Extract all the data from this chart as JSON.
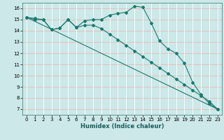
{
  "xlabel": "Humidex (Indice chaleur)",
  "bg_color": "#cce8e8",
  "line_color": "#1a7a6e",
  "grid_color_v": "#ffffff",
  "grid_color_h": "#e8b8b8",
  "xlim": [
    -0.5,
    23.5
  ],
  "ylim": [
    6.5,
    16.5
  ],
  "xticks": [
    0,
    1,
    2,
    3,
    4,
    5,
    6,
    7,
    8,
    9,
    10,
    11,
    12,
    13,
    14,
    15,
    16,
    17,
    18,
    19,
    20,
    21,
    22,
    23
  ],
  "yticks": [
    7,
    8,
    9,
    10,
    11,
    12,
    13,
    14,
    15,
    16
  ],
  "line1_x": [
    0,
    1,
    2,
    3,
    4,
    5,
    6,
    7,
    8,
    9,
    10,
    11,
    12,
    13,
    14,
    15,
    16,
    17,
    18,
    19,
    20,
    21,
    22,
    23
  ],
  "line1_y": [
    15.2,
    15.1,
    15.0,
    14.1,
    14.25,
    15.0,
    14.3,
    14.9,
    15.0,
    15.0,
    15.4,
    15.55,
    15.65,
    16.2,
    16.1,
    14.7,
    13.1,
    12.4,
    12.0,
    11.1,
    9.4,
    8.3,
    7.5,
    7.0
  ],
  "line2_x": [
    0,
    1,
    2,
    3,
    4,
    5,
    6,
    7,
    8,
    9,
    10,
    11,
    12,
    13,
    14,
    15,
    16,
    17,
    18,
    19,
    20,
    21,
    22,
    23
  ],
  "line2_y": [
    15.2,
    15.0,
    15.0,
    14.1,
    14.25,
    15.0,
    14.3,
    14.5,
    14.5,
    14.2,
    13.7,
    13.2,
    12.7,
    12.2,
    11.7,
    11.2,
    10.7,
    10.2,
    9.7,
    9.2,
    8.7,
    8.2,
    7.7,
    7.0
  ],
  "line3_x": [
    0,
    23
  ],
  "line3_y": [
    15.2,
    7.0
  ]
}
